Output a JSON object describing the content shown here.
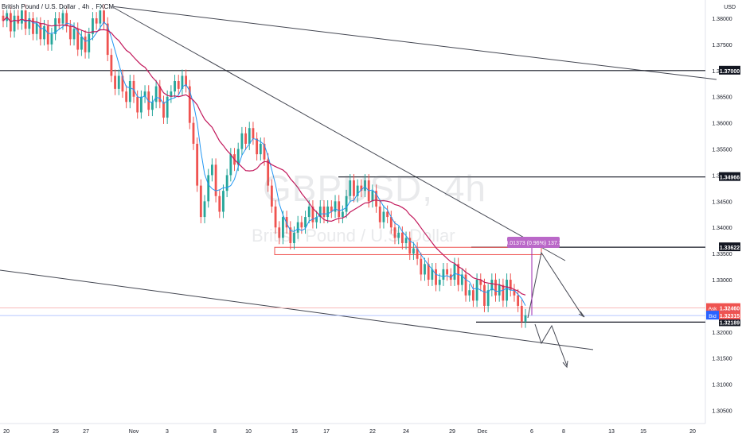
{
  "legend": {
    "symbol_desc": "British Pound / U.S. Dollar",
    "interval": "4h",
    "exchange": "FXCM"
  },
  "watermark": {
    "symbol": "GBPUSD, 4h",
    "description": "British Pound / U.S. Dollar"
  },
  "currency_label": "USD",
  "colors": {
    "up": "#26a69a",
    "down": "#ef5350",
    "ma_fast": "#2196f3",
    "ma_slow": "#c2185b",
    "trendline": "#434651",
    "box_fill": "#ba68c8",
    "ask": "#ef5350",
    "bid": "#2962ff",
    "price_line": "#ef5350"
  },
  "measure_label": "0.01373 (0.96%) 137.3",
  "chart_data": {
    "type": "candlestick",
    "title": "GBPUSD, 4h",
    "ylim": [
      1.3025,
      1.3835
    ],
    "y_ticks": [
      "1.38000",
      "1.37500",
      "1.37000",
      "1.36500",
      "1.36000",
      "1.35500",
      "1.35000",
      "1.34500",
      "1.34000",
      "1.33500",
      "1.33000",
      "1.32500",
      "1.32000",
      "1.31500",
      "1.31000",
      "1.30500"
    ],
    "x_ticks": [
      "20",
      "25",
      "27",
      "Nov",
      "3",
      "8",
      "10",
      "15",
      "17",
      "22",
      "24",
      "29",
      "Dec",
      "6",
      "8",
      "13",
      "15",
      "20"
    ],
    "price_labels": [
      {
        "value": "1.37000",
        "y": 1.37
      },
      {
        "value": "1.34966",
        "y": 1.34966
      },
      {
        "value": "1.33622",
        "y": 1.33622
      },
      {
        "value": "1.32189",
        "y": 1.32189
      },
      {
        "tag": "Ask",
        "value": "1.32460",
        "y": 1.3246
      },
      {
        "tag": "Bid",
        "value": "1.32315",
        "y": 1.32315
      },
      {
        "value": "1.32315",
        "y": 1.32315
      }
    ],
    "horizontal_levels": [
      1.37,
      1.34966,
      1.33622,
      1.32189
    ],
    "candle_closes": [
      1.3795,
      1.381,
      1.3775,
      1.3805,
      1.379,
      1.3815,
      1.378,
      1.38,
      1.377,
      1.379,
      1.376,
      1.3785,
      1.375,
      1.377,
      1.38,
      1.379,
      1.381,
      1.3785,
      1.376,
      1.378,
      1.374,
      1.3765,
      1.3735,
      1.377,
      1.38,
      1.379,
      1.3815,
      1.379,
      1.373,
      1.369,
      1.3665,
      1.369,
      1.366,
      1.364,
      1.368,
      1.365,
      1.362,
      1.365,
      1.366,
      1.3625,
      1.364,
      1.367,
      1.364,
      1.361,
      1.365,
      1.366,
      1.368,
      1.3665,
      1.369,
      1.367,
      1.36,
      1.356,
      1.348,
      1.342,
      1.345,
      1.35,
      1.352,
      1.346,
      1.343,
      1.347,
      1.35,
      1.354,
      1.352,
      1.355,
      1.358,
      1.356,
      1.359,
      1.357,
      1.354,
      1.356,
      1.353,
      1.348,
      1.344,
      1.34,
      1.338,
      1.342,
      1.34,
      1.337,
      1.339,
      1.341,
      1.34,
      1.342,
      1.344,
      1.341,
      1.342,
      1.344,
      1.342,
      1.344,
      1.343,
      1.345,
      1.342,
      1.343,
      1.346,
      1.349,
      1.346,
      1.348,
      1.347,
      1.349,
      1.345,
      1.347,
      1.344,
      1.341,
      1.343,
      1.342,
      1.34,
      1.338,
      1.339,
      1.337,
      1.338,
      1.335,
      1.336,
      1.334,
      1.331,
      1.333,
      1.33,
      1.332,
      1.329,
      1.33,
      1.332,
      1.331,
      1.33,
      1.333,
      1.329,
      1.331,
      1.327,
      1.328,
      1.326,
      1.33,
      1.329,
      1.325,
      1.328,
      1.33,
      1.327,
      1.329,
      1.326,
      1.33,
      1.328,
      1.327,
      1.325,
      1.322,
      1.3232
    ]
  }
}
